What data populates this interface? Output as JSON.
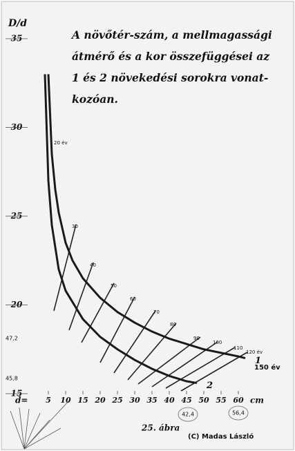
{
  "chart_data": {
    "type": "line",
    "title": [
      "A növőtér-szám, a mellmagassági",
      "átmérő és a kor összefüggései az",
      "1 és 2 növekedési sorokra vonat-",
      "kozóan."
    ],
    "y_label": "D/d",
    "x_label_left": "d=",
    "x_label_right": "cm",
    "xlim": [
      -3,
      68
    ],
    "ylim": [
      15,
      37
    ],
    "xticks": [
      5,
      10,
      15,
      20,
      25,
      30,
      35,
      40,
      45,
      50,
      55,
      60
    ],
    "yticks": [
      15,
      20,
      25,
      30,
      35
    ],
    "series": [
      {
        "name": "1",
        "color": "#1a1a1a",
        "x": [
          5,
          6,
          7,
          8,
          10,
          12,
          15,
          20,
          25,
          30,
          35,
          40,
          45,
          50,
          55,
          60,
          62
        ],
        "values": [
          33,
          28.5,
          26.5,
          25.2,
          23.5,
          22.5,
          21.5,
          20.4,
          19.6,
          19,
          18.5,
          18.1,
          17.8,
          17.5,
          17.3,
          17.1,
          17
        ]
      },
      {
        "name": "2",
        "color": "#1a1a1a",
        "x": [
          4,
          5,
          6,
          8,
          10,
          15,
          20,
          25,
          30,
          35,
          40,
          45,
          48
        ],
        "values": [
          33,
          27,
          24.5,
          22,
          20.8,
          19.2,
          18.2,
          17.5,
          16.9,
          16.4,
          16,
          15.7,
          15.6
        ]
      }
    ],
    "age_labels": [
      "20 év",
      "30",
      "40",
      "50",
      "60",
      "70",
      "80",
      "90",
      "100",
      "110",
      "120 év",
      "150 év"
    ],
    "side_notes": [
      "47,2",
      "45,8"
    ],
    "circled_notes": [
      "42,4",
      "56,4"
    ],
    "caption": "25. ábra",
    "credit": "(C) Madas László"
  }
}
